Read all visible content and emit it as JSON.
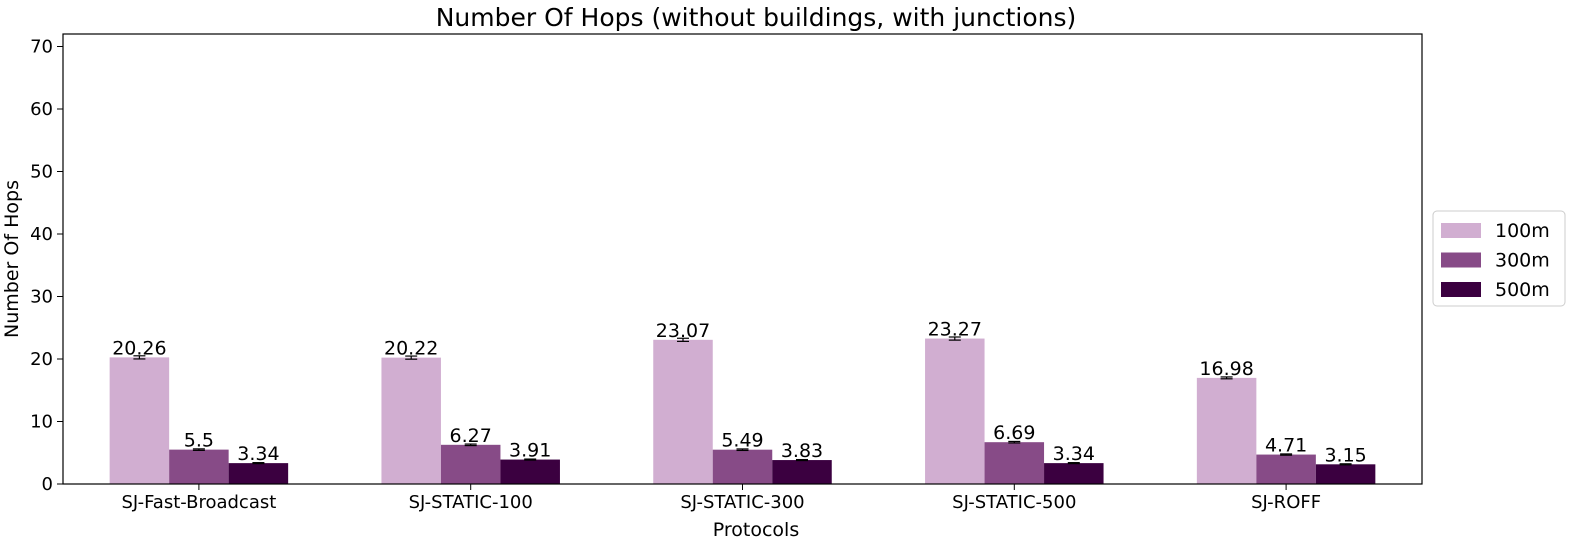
{
  "chart_data": {
    "type": "bar",
    "title": "Number Of Hops (without buildings, with junctions)",
    "xlabel": "Protocols",
    "ylabel": "Number Of Hops",
    "ylim": [
      0,
      72
    ],
    "yticks": [
      0,
      10,
      20,
      30,
      40,
      50,
      60,
      70
    ],
    "grid": false,
    "legend_position": "right",
    "categories": [
      "SJ-Fast-Broadcast",
      "SJ-STATIC-100",
      "SJ-STATIC-300",
      "SJ-STATIC-500",
      "SJ-ROFF"
    ],
    "series": [
      {
        "name": "100m",
        "color": "#d1aed1",
        "values": [
          20.26,
          20.22,
          23.07,
          23.27,
          16.98
        ],
        "labels": [
          "20.26",
          "20.22",
          "23.07",
          "23.27",
          "16.98"
        ],
        "error": [
          0.25,
          0.25,
          0.25,
          0.25,
          0.15
        ]
      },
      {
        "name": "300m",
        "color": "#874b87",
        "values": [
          5.5,
          6.27,
          5.49,
          6.69,
          4.71
        ],
        "labels": [
          "5.5",
          "6.27",
          "5.49",
          "6.69",
          "4.71"
        ],
        "error": [
          0.12,
          0.12,
          0.12,
          0.12,
          0.1
        ]
      },
      {
        "name": "500m",
        "color": "#3b0040",
        "values": [
          3.34,
          3.91,
          3.83,
          3.34,
          3.15
        ],
        "labels": [
          "3.34",
          "3.91",
          "3.83",
          "3.34",
          "3.15"
        ],
        "error": [
          0.08,
          0.08,
          0.08,
          0.08,
          0.08
        ]
      }
    ]
  }
}
